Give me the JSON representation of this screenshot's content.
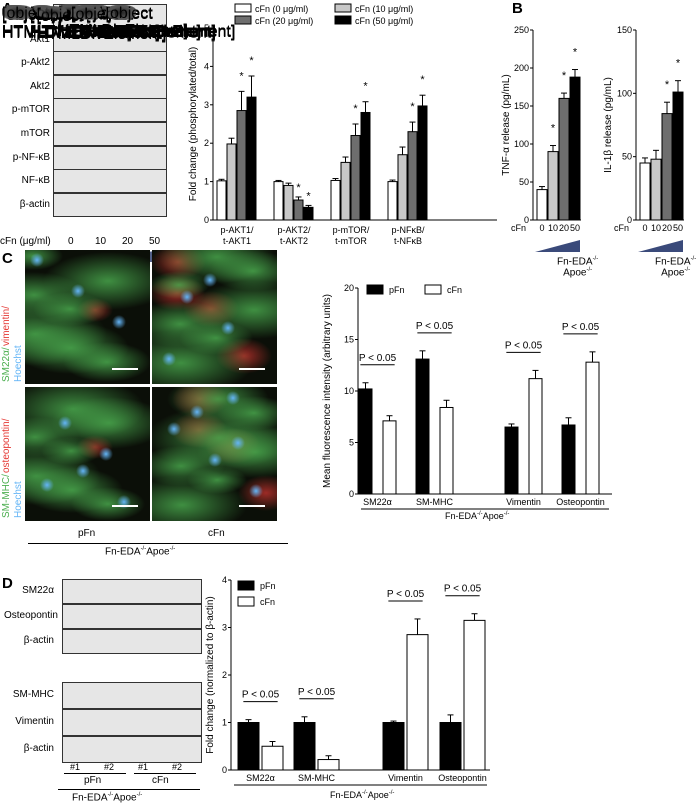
{
  "panels": {
    "a": "A",
    "b": "B",
    "c": "C",
    "d": "D"
  },
  "genotype": {
    "fn": "Fn-EDA",
    "sup": "-/-",
    "apoe": "Apoe"
  },
  "panel_a_blot": {
    "rows": [
      "p-Akt1",
      "Akt1",
      "p-Akt2",
      "Akt2",
      "p-mTOR",
      "mTOR",
      "p-NF-κB",
      "NF-κB",
      "β-actin"
    ],
    "dose_label": "cFn (μg/ml)",
    "doses": [
      "0",
      "10",
      "20",
      "50"
    ],
    "gradient_color": "#3a4a7a"
  },
  "panel_c": {
    "row_labels": [
      [
        "SM22α/",
        "vimentin/",
        "Hoechst"
      ],
      [
        "SM-MHC/",
        "osteopontin/",
        "Hoechst"
      ]
    ],
    "stain_colors": {
      "green": "#4caf50",
      "red": "#e53935",
      "blue": "#64b5f6"
    },
    "columns": [
      "pFn",
      "cFn"
    ]
  },
  "panel_d_blot": {
    "rows_top": [
      "SM22α",
      "Osteopontin",
      "β-actin"
    ],
    "rows_bottom": [
      "SM-MHC",
      "Vimentin",
      "β-actin"
    ],
    "samples": [
      "#1",
      "#2",
      "#1",
      "#2"
    ],
    "groups": [
      "pFn",
      "cFn"
    ]
  },
  "chart_data": [
    {
      "id": "A",
      "type": "bar",
      "ylabel": "Fold change (phosphorylated/total)",
      "ylim": [
        0,
        5
      ],
      "yticks": [
        "0",
        "1",
        "2",
        "3",
        "4",
        "5"
      ],
      "categories": [
        "p-AKT1/ t-AKT1",
        "p-AKT2/ t-AKT2",
        "p-mTOR/ t-mTOR",
        "p-NFκB/ t-NFκB"
      ],
      "series": [
        {
          "name": "cFn (0 μg/ml)",
          "color": "#ffffff",
          "values": [
            1.02,
            1.0,
            1.03,
            1.0
          ],
          "err": [
            0.04,
            0.03,
            0.05,
            0.04
          ]
        },
        {
          "name": "cFn (10 μg/ml)",
          "color": "#c8c8c8",
          "values": [
            1.98,
            0.9,
            1.5,
            1.7
          ],
          "err": [
            0.15,
            0.06,
            0.14,
            0.2
          ]
        },
        {
          "name": "cFn (20 μg/ml)",
          "color": "#6e6e6e",
          "values": [
            2.85,
            0.52,
            2.2,
            2.3
          ],
          "err": [
            0.5,
            0.08,
            0.3,
            0.25
          ]
        },
        {
          "name": "cFn (50 μg/ml)",
          "color": "#000000",
          "values": [
            3.2,
            0.33,
            2.8,
            2.97
          ],
          "err": [
            0.55,
            0.05,
            0.28,
            0.28
          ]
        }
      ],
      "significance": "*",
      "stars": [
        [
          0,
          2
        ],
        [
          0,
          3
        ],
        [
          1,
          2
        ],
        [
          1,
          3
        ],
        [
          2,
          2
        ],
        [
          2,
          3
        ],
        [
          3,
          2
        ],
        [
          3,
          3
        ]
      ],
      "legend": "top"
    },
    {
      "id": "B1",
      "type": "bar",
      "ylabel": "TNF-α release (pg/mL)",
      "ylim": [
        0,
        250
      ],
      "yticks": [
        "0",
        "50",
        "100",
        "150",
        "200",
        "250"
      ],
      "xlabel": "cFn",
      "categories": [
        "0",
        "10",
        "20",
        "50"
      ],
      "values": [
        40,
        90,
        160,
        188
      ],
      "err": [
        4,
        8,
        7,
        10
      ],
      "colors": [
        "#ffffff",
        "#c8c8c8",
        "#6e6e6e",
        "#000000"
      ],
      "stars": [
        1,
        2,
        3
      ],
      "significance": "*"
    },
    {
      "id": "B2",
      "type": "bar",
      "ylabel": "IL-1β release (pg/mL)",
      "ylim": [
        0,
        150
      ],
      "yticks": [
        "0",
        "50",
        "100",
        "150"
      ],
      "xlabel": "cFn",
      "categories": [
        "0",
        "10",
        "20",
        "50"
      ],
      "values": [
        45,
        48,
        84,
        101
      ],
      "err": [
        4,
        7,
        9,
        9
      ],
      "colors": [
        "#ffffff",
        "#c8c8c8",
        "#6e6e6e",
        "#000000"
      ],
      "stars": [
        2,
        3
      ],
      "significance": "*"
    },
    {
      "id": "C",
      "type": "bar",
      "ylabel": "Mean fluorescence intensity (arbitrary units)",
      "ylim": [
        0,
        20
      ],
      "yticks": [
        "0",
        "5",
        "10",
        "15",
        "20"
      ],
      "categories": [
        "SM22α",
        "SM-MHC",
        "Vimentin",
        "Osteopontin"
      ],
      "series": [
        {
          "name": "pFn",
          "color": "#000000",
          "values": [
            10.2,
            13.1,
            6.5,
            6.7
          ],
          "err": [
            0.6,
            0.8,
            0.3,
            0.7
          ]
        },
        {
          "name": "cFn",
          "color": "#ffffff",
          "values": [
            7.1,
            8.4,
            11.2,
            12.8
          ],
          "err": [
            0.5,
            0.7,
            0.8,
            1.0
          ]
        }
      ],
      "annotation": "P < 0.05",
      "legend": "top"
    },
    {
      "id": "D",
      "type": "bar",
      "ylabel": "Fold change (normalized to β-actin)",
      "ylim": [
        0,
        4
      ],
      "yticks": [
        "0",
        "1",
        "2",
        "3",
        "4"
      ],
      "categories": [
        "SM22α",
        "SM-MHC",
        "Vimentin",
        "Osteopontin"
      ],
      "series": [
        {
          "name": "pFn",
          "color": "#000000",
          "values": [
            1.0,
            1.0,
            1.0,
            1.0
          ],
          "err": [
            0.06,
            0.12,
            0.03,
            0.16
          ]
        },
        {
          "name": "cFn",
          "color": "#ffffff",
          "values": [
            0.5,
            0.22,
            2.85,
            3.15
          ],
          "err": [
            0.1,
            0.08,
            0.33,
            0.14
          ]
        }
      ],
      "annotation": "P < 0.05",
      "legend": "top-left"
    }
  ]
}
